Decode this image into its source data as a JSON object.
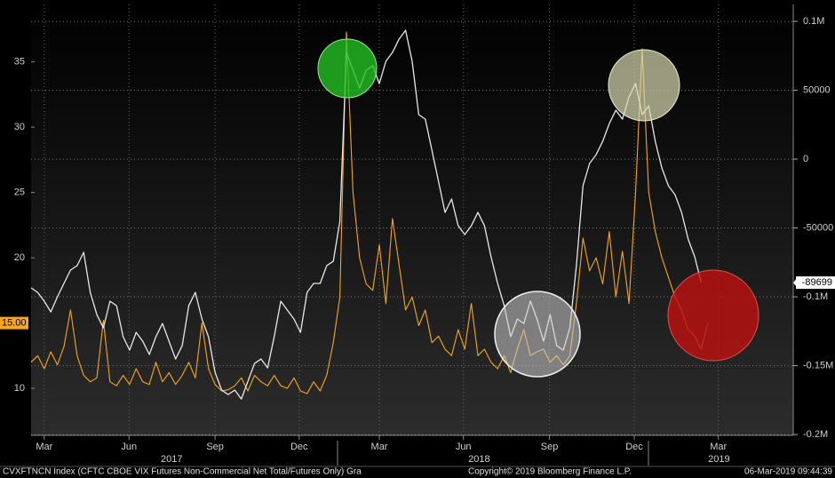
{
  "chart_data": {
    "type": "line",
    "footer_left": "CVXFTNCN Index (CFTC CBOE VIX Futures Non-Commercial Net Total/Futures Only) Gra",
    "footer_center": "Copyright© 2019 Bloomberg Finance L.P.",
    "footer_right": "06-Mar-2019 09:44:39",
    "xlim": [
      0,
      116
    ],
    "xticks": [
      {
        "value": 2.0,
        "label": "Mar"
      },
      {
        "value": 14.9,
        "label": "Jun"
      },
      {
        "value": 28.0,
        "label": "Sep"
      },
      {
        "value": 40.8,
        "label": "Dec"
      },
      {
        "value": 53.0,
        "label": "Mar"
      },
      {
        "value": 65.8,
        "label": "Jun"
      },
      {
        "value": 78.9,
        "label": "Sep"
      },
      {
        "value": 91.8,
        "label": "Dec"
      },
      {
        "value": 104.6,
        "label": "Mar"
      }
    ],
    "year_ticks": [
      {
        "value": 21.4,
        "label": "2017"
      },
      {
        "value": 68.2,
        "label": "2018"
      },
      {
        "value": 104.7,
        "label": "2019"
      }
    ],
    "ylim": [
      6.4,
      39.4
    ],
    "yticks": [
      10,
      20,
      25,
      30,
      35
    ],
    "y2lim": [
      -200600,
      112300
    ],
    "y2ticks": [
      {
        "value": 100000,
        "label": "0.1M"
      },
      50000,
      0,
      -50000,
      {
        "value": -100000,
        "label": "-0.1M"
      },
      {
        "value": -150000,
        "label": "-0.15M"
      },
      {
        "value": -200000,
        "label": "-0.2M"
      }
    ],
    "grid": true,
    "series": [
      {
        "color": "#f5a623",
        "axis": "y",
        "badge": "15.00",
        "values": [
          12.0,
          12.5,
          11.5,
          12.8,
          11.8,
          13.2,
          16.0,
          12.5,
          11.0,
          10.5,
          10.8,
          15.2,
          10.5,
          10.2,
          11.0,
          10.3,
          11.5,
          10.5,
          10.3,
          12.0,
          10.5,
          11.2,
          10.3,
          11.0,
          12.0,
          10.8,
          15.0,
          11.5,
          10.3,
          9.8,
          9.9,
          10.2,
          10.8,
          9.8,
          11.0,
          10.5,
          10.2,
          11.0,
          10.2,
          10.0,
          10.8,
          9.8,
          9.6,
          10.5,
          9.8,
          11.0,
          13.5,
          17.0,
          37.3,
          25.0,
          20.0,
          18.0,
          17.5,
          21.0,
          16.5,
          23.0,
          19.5,
          16.0,
          17.0,
          14.8,
          16.0,
          13.5,
          14.0,
          13.0,
          12.5,
          14.5,
          13.0,
          16.5,
          12.5,
          13.0,
          12.0,
          11.5,
          12.5,
          11.2,
          13.0,
          14.5,
          12.5,
          12.8,
          13.0,
          12.0,
          12.5,
          11.8,
          12.5,
          16.5,
          21.5,
          19.0,
          20.0,
          18.0,
          22.0,
          17.0,
          20.5,
          16.5,
          25.0,
          36.0,
          25.0,
          22.0,
          20.0,
          18.5,
          17.0,
          16.0,
          14.5,
          14.0,
          13.0,
          15.0
        ]
      },
      {
        "color": "#e8e8e8",
        "axis": "y2",
        "badge": "-89699",
        "values": [
          -93500,
          -96800,
          -103200,
          -111000,
          -100000,
          -90300,
          -80600,
          -77400,
          -67700,
          -96800,
          -112900,
          -122600,
          -103200,
          -106500,
          -129000,
          -138700,
          -125800,
          -132300,
          -141900,
          -129000,
          -119400,
          -132300,
          -145200,
          -135500,
          -106500,
          -96800,
          -116100,
          -129000,
          -154800,
          -167700,
          -171000,
          -167700,
          -174200,
          -161300,
          -148400,
          -145200,
          -151600,
          -129000,
          -103200,
          -109700,
          -116100,
          -125800,
          -96800,
          -90300,
          -90300,
          -77400,
          -74200,
          -45200,
          77400,
          64500,
          51600,
          64500,
          67700,
          54800,
          71000,
          77400,
          87100,
          93500,
          71000,
          32300,
          29000,
          6500,
          -16100,
          -38700,
          -29000,
          -48400,
          -54800,
          -48400,
          -38700,
          -48400,
          -71000,
          -90300,
          -106500,
          -129000,
          -116100,
          -119400,
          -103200,
          -116100,
          -132300,
          -112900,
          -135500,
          -138700,
          -122600,
          -77400,
          -19400,
          -3200,
          3200,
          12900,
          25800,
          35500,
          29000,
          45200,
          54800,
          32300,
          38700,
          12900,
          -6500,
          -19400,
          -25800,
          -38700,
          -58100,
          -71000,
          -89699
        ]
      }
    ]
  }
}
